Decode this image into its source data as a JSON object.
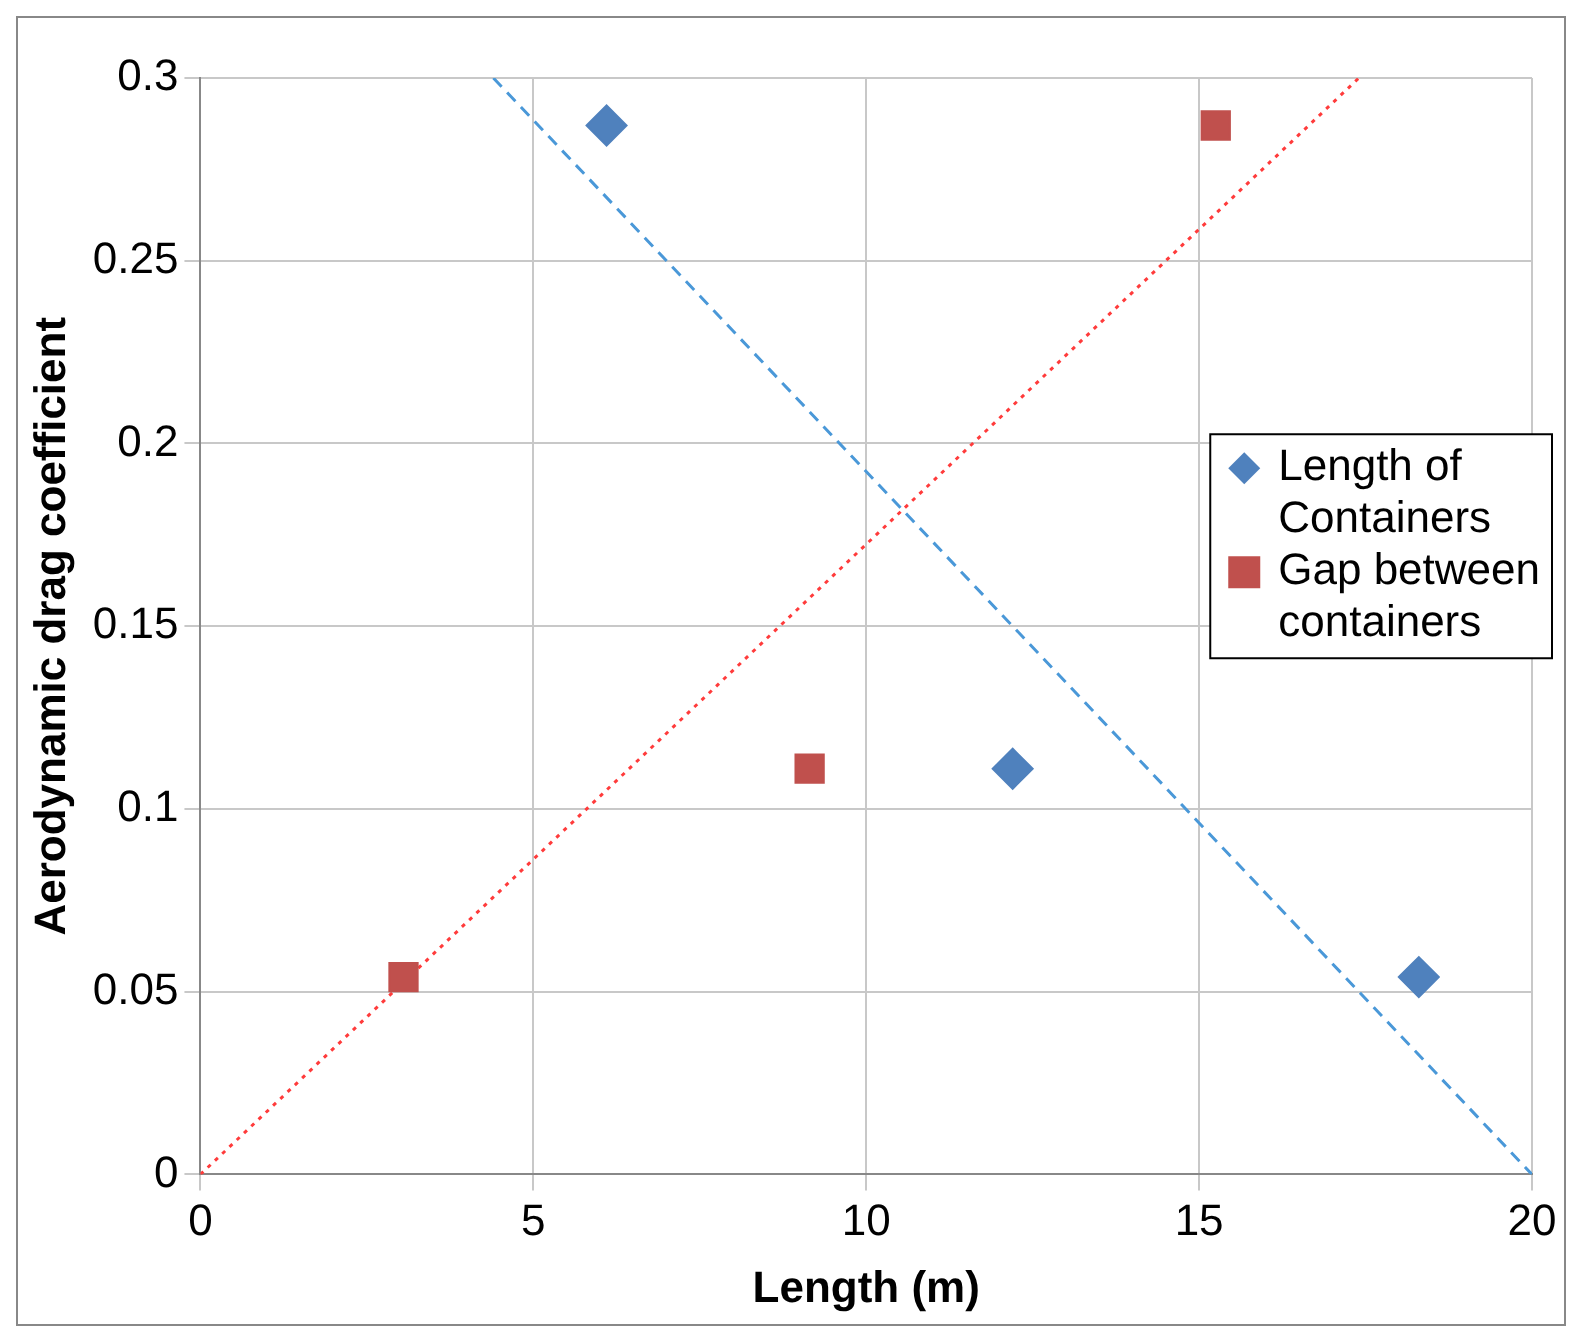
{
  "chart_data": {
    "type": "scatter",
    "xlabel": "Length (m)",
    "ylabel": "Aerodynamic drag coefficient",
    "xlim": [
      0,
      20
    ],
    "xticks": [
      0,
      5,
      10,
      15,
      20
    ],
    "ylim": [
      0,
      0.3
    ],
    "yticks": [
      0,
      0.05,
      0.1,
      0.15,
      0.2,
      0.25,
      0.3
    ],
    "grid": true,
    "legend": "right",
    "series": [
      {
        "name": "Length of Containers",
        "marker": "diamond",
        "color": "#4f81bd",
        "x": [
          6.1,
          12.2,
          18.3
        ],
        "values": [
          0.287,
          0.111,
          0.054
        ]
      },
      {
        "name": "Gap between containers",
        "marker": "square",
        "color": "#c0504d",
        "x": [
          3.05,
          9.15,
          15.25
        ],
        "values": [
          0.054,
          0.111,
          0.287
        ]
      },
      {
        "type": "line",
        "marker": "none",
        "line_style": "dashed",
        "color": "#4a98d8",
        "x": [
          4.4,
          20
        ],
        "values": [
          0.3,
          0
        ]
      },
      {
        "type": "line",
        "marker": "none",
        "line_style": "dotted",
        "color": "#ff3b3b",
        "x": [
          0,
          17.4
        ],
        "values": [
          0,
          0.3
        ]
      }
    ]
  }
}
